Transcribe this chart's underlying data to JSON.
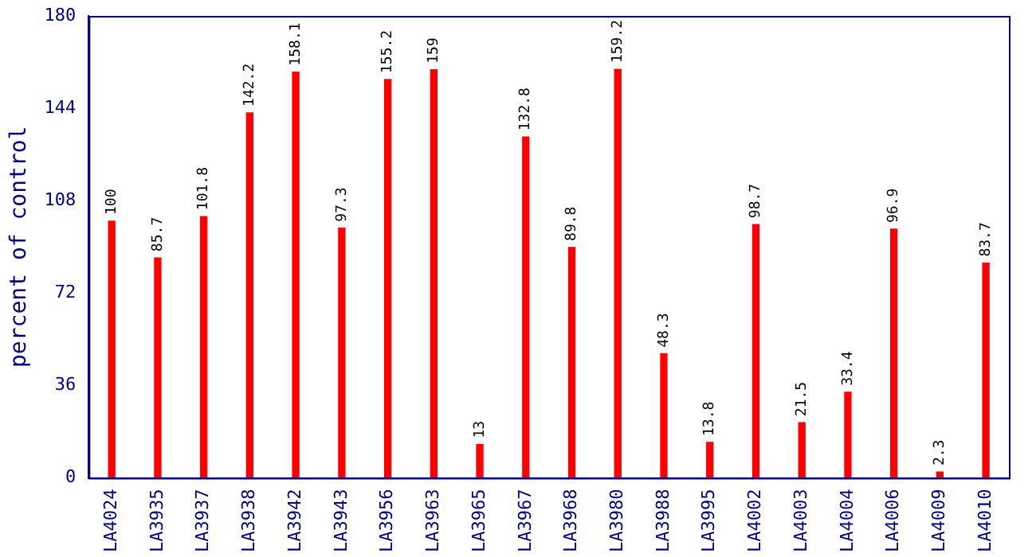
{
  "chart_data": {
    "type": "bar",
    "ylabel": "percent of control",
    "categories": [
      "LA4024",
      "LA3935",
      "LA3937",
      "LA3938",
      "LA3942",
      "LA3943",
      "LA3956",
      "LA3963",
      "LA3965",
      "LA3967",
      "LA3968",
      "LA3980",
      "LA3988",
      "LA3995",
      "LA4002",
      "LA4003",
      "LA4004",
      "LA4006",
      "LA4009",
      "LA4010"
    ],
    "values": [
      100,
      85.7,
      101.8,
      142.2,
      158.1,
      97.3,
      155.2,
      159,
      13,
      132.8,
      89.8,
      159.2,
      48.3,
      13.8,
      98.7,
      21.5,
      33.4,
      96.9,
      2.3,
      83.7
    ],
    "color": "#ff0000",
    "ylim": [
      0,
      180
    ],
    "yticks": [
      0,
      36,
      72,
      108,
      144,
      180
    ],
    "grid": false,
    "legend": false,
    "data_labels": true
  }
}
